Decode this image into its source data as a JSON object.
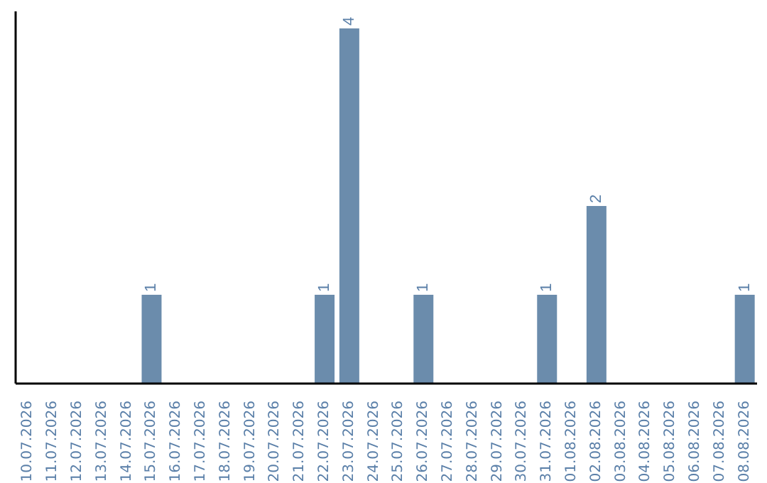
{
  "chart_data": {
    "type": "bar",
    "categories": [
      "10.07.2026",
      "11.07.2026",
      "12.07.2026",
      "13.07.2026",
      "14.07.2026",
      "15.07.2026",
      "16.07.2026",
      "17.07.2026",
      "18.07.2026",
      "19.07.2026",
      "20.07.2026",
      "21.07.2026",
      "22.07.2026",
      "23.07.2026",
      "24.07.2026",
      "25.07.2026",
      "26.07.2026",
      "27.07.2026",
      "28.07.2026",
      "29.07.2026",
      "30.07.2026",
      "31.07.2026",
      "01.08.2026",
      "02.08.2026",
      "03.08.2026",
      "04.08.2026",
      "05.08.2026",
      "06.08.2026",
      "07.08.2026",
      "08.08.2026"
    ],
    "values": [
      0,
      0,
      0,
      0,
      0,
      1,
      0,
      0,
      0,
      0,
      0,
      0,
      1,
      4,
      0,
      0,
      1,
      0,
      0,
      0,
      0,
      1,
      0,
      2,
      0,
      0,
      0,
      0,
      0,
      1
    ],
    "value_labels": [
      null,
      null,
      null,
      null,
      null,
      "1",
      null,
      null,
      null,
      null,
      null,
      null,
      "1",
      "4",
      null,
      null,
      "1",
      null,
      null,
      null,
      null,
      "1",
      null,
      "2",
      null,
      null,
      null,
      null,
      null,
      "1"
    ],
    "color": "#6b8cac",
    "grid": false,
    "legend": false
  }
}
